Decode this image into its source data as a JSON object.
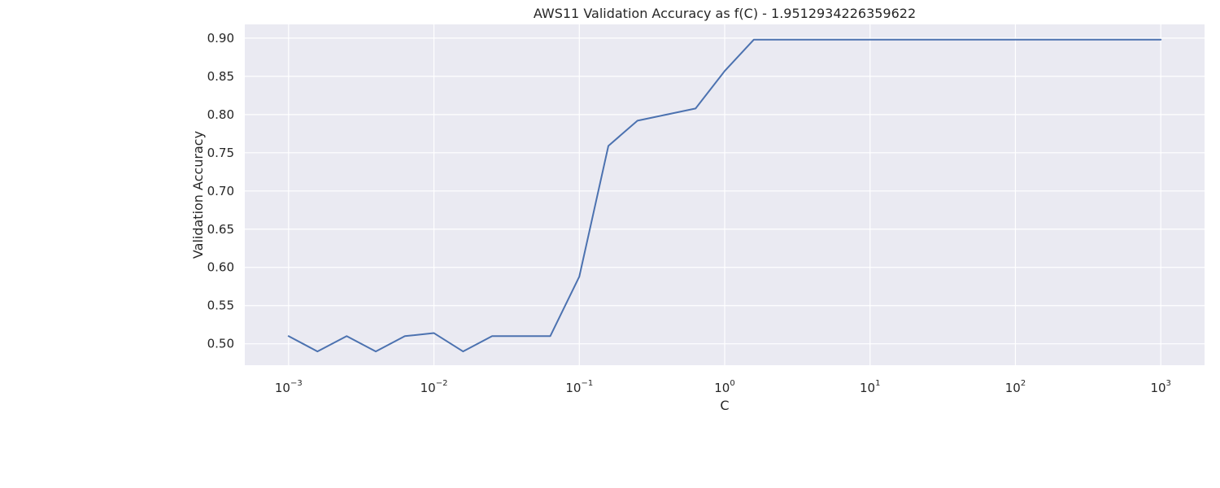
{
  "chart_data": {
    "type": "line",
    "title": "AWS11 Validation Accuracy as f(C) - 1.9512934226359622",
    "xlabel": "C",
    "ylabel": "Validation Accuracy",
    "xscale": "log",
    "xlim": [
      0.0005,
      2000
    ],
    "ylim": [
      0.472,
      0.918
    ],
    "xticks": [
      {
        "base": "10",
        "exp": "−3",
        "value": 0.001
      },
      {
        "base": "10",
        "exp": "−2",
        "value": 0.01
      },
      {
        "base": "10",
        "exp": "−1",
        "value": 0.1
      },
      {
        "base": "10",
        "exp": "0",
        "value": 1
      },
      {
        "base": "10",
        "exp": "1",
        "value": 10
      },
      {
        "base": "10",
        "exp": "2",
        "value": 100
      },
      {
        "base": "10",
        "exp": "3",
        "value": 1000
      }
    ],
    "yticks": [
      "0.50",
      "0.55",
      "0.60",
      "0.65",
      "0.70",
      "0.75",
      "0.80",
      "0.85",
      "0.90"
    ],
    "grid": true,
    "colors": {
      "plot_background": "#eaeaf2",
      "grid": "#ffffff",
      "line": "#4c72b0",
      "text": "#262626"
    },
    "series": [
      {
        "x": [
          0.001,
          0.00158,
          0.00251,
          0.00398,
          0.00631,
          0.01,
          0.01585,
          0.02512,
          0.03981,
          0.0631,
          0.1,
          0.15849,
          0.25119,
          0.39811,
          0.63096,
          1,
          1.58489,
          2.51189,
          3.98107,
          6.30957,
          10,
          15.8489,
          25.1189,
          39.8107,
          63.0957,
          100,
          158.489,
          251.189,
          398.107,
          630.957,
          1000
        ],
        "values": [
          0.51,
          0.49,
          0.51,
          0.49,
          0.51,
          0.514,
          0.49,
          0.51,
          0.51,
          0.51,
          0.588,
          0.759,
          0.792,
          0.8,
          0.808,
          0.857,
          0.898,
          0.898,
          0.898,
          0.898,
          0.898,
          0.898,
          0.898,
          0.898,
          0.898,
          0.898,
          0.898,
          0.898,
          0.898,
          0.898,
          0.898
        ]
      }
    ]
  }
}
